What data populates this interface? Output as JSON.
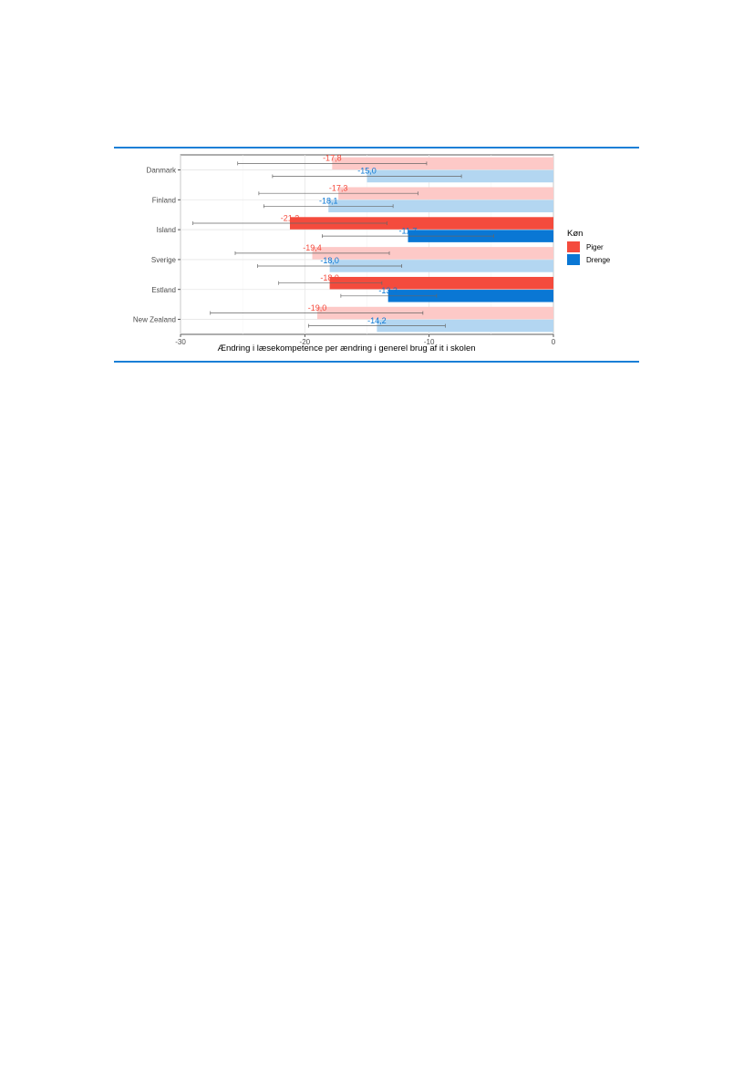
{
  "chart_data": {
    "type": "bar",
    "orientation": "horizontal",
    "xlabel": "Ændring i læsekompetence per ændring i generel brug af it i skolen",
    "xlim": [
      -30,
      0
    ],
    "xticks": [
      -30,
      -20,
      -10,
      0
    ],
    "categories": [
      "Danmark",
      "Finland",
      "Island",
      "Sverige",
      "Estland",
      "New Zealand"
    ],
    "legend": {
      "title": "Køn",
      "position": "right",
      "entries": [
        {
          "name": "Piger",
          "color": "#f44b3d"
        },
        {
          "name": "Drenge",
          "color": "#0a77d4"
        }
      ]
    },
    "series": [
      {
        "name": "Piger",
        "color": "#f44b3d",
        "light_color": "#fdc9c7",
        "values": [
          -17.8,
          -17.3,
          -21.2,
          -19.4,
          -18.0,
          -19.0
        ],
        "labels": [
          "-17,8",
          "-17,3",
          "-21,2",
          "-19,4",
          "-18,0",
          "-19,0"
        ],
        "ci_low": [
          -25.4,
          -23.7,
          -29.0,
          -25.6,
          -22.1,
          -27.6
        ],
        "ci_high": [
          -10.2,
          -10.9,
          -13.4,
          -13.2,
          -13.8,
          -10.5
        ],
        "significant": [
          false,
          false,
          true,
          false,
          true,
          false
        ]
      },
      {
        "name": "Drenge",
        "color": "#0a77d4",
        "light_color": "#b3d6f1",
        "values": [
          -15.0,
          -18.1,
          -11.7,
          -18.0,
          -13.3,
          -14.2
        ],
        "labels": [
          "-15,0",
          "-18,1",
          "-11,7",
          "-18,0",
          "-13,3",
          "-14,2"
        ],
        "ci_low": [
          -22.6,
          -23.3,
          -18.6,
          -23.8,
          -17.1,
          -19.7
        ],
        "ci_high": [
          -7.4,
          -12.9,
          -4.8,
          -12.2,
          -9.4,
          -8.7
        ],
        "significant": [
          false,
          false,
          true,
          false,
          true,
          false
        ]
      }
    ],
    "grid": true
  }
}
